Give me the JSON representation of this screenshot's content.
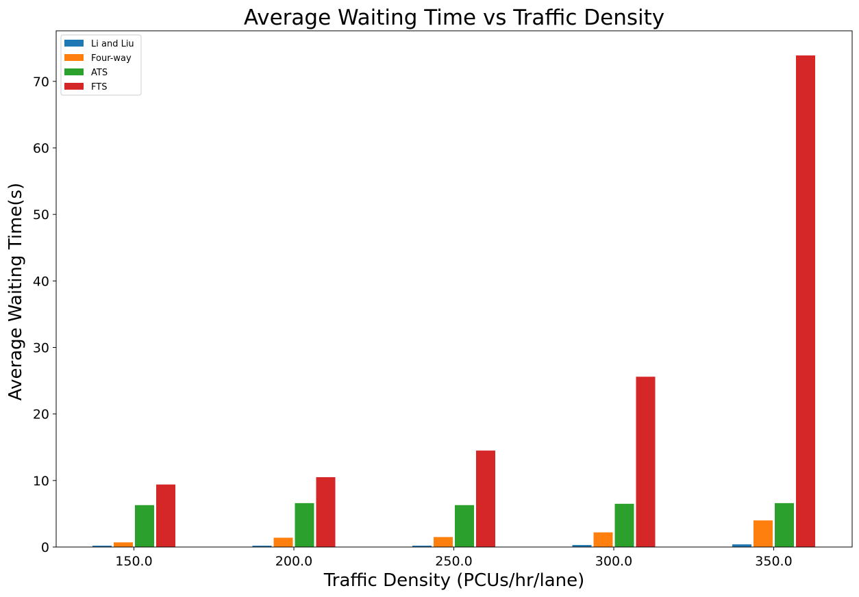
{
  "chart_data": {
    "type": "bar",
    "title": "Average Waiting Time  vs Traffic Density",
    "xlabel": "Traffic Density (PCUs/hr/lane)",
    "ylabel": "Average Waiting Time(s)",
    "categories": [
      "150.0",
      "200.0",
      "250.0",
      "300.0",
      "350.0"
    ],
    "series": [
      {
        "name": "Li and Liu",
        "color": "#1f77b4",
        "values": [
          0.2,
          0.2,
          0.2,
          0.3,
          0.4
        ]
      },
      {
        "name": "Four-way",
        "color": "#ff7f0e",
        "values": [
          0.7,
          1.4,
          1.5,
          2.2,
          4.0
        ]
      },
      {
        "name": "ATS",
        "color": "#2ca02c",
        "values": [
          6.3,
          6.6,
          6.3,
          6.5,
          6.6
        ]
      },
      {
        "name": "FTS",
        "color": "#d62728",
        "values": [
          9.4,
          10.5,
          14.5,
          25.6,
          73.9
        ]
      }
    ],
    "ylim": [
      0,
      77.6
    ],
    "yticks": [
      0,
      10,
      20,
      30,
      40,
      50,
      60,
      70
    ],
    "grid": false,
    "legend_position": "top-left"
  }
}
